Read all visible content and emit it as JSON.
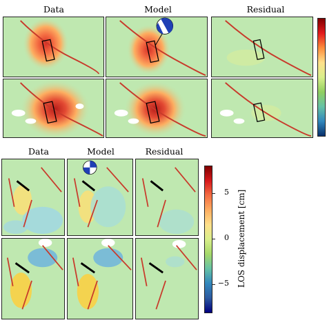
{
  "top_figure": {
    "titles": {
      "data": "Data",
      "model": "Model",
      "residual": "Residual"
    }
  },
  "bottom_figure": {
    "titles": {
      "data": "Data",
      "model": "Model",
      "residual": "Residual"
    },
    "colorbar": {
      "label": "LOS displacement [cm]",
      "ticks": [
        "5",
        "0",
        "−5"
      ],
      "range": [
        -8,
        8
      ],
      "colormap": "jet"
    }
  },
  "colors": {
    "fault": "#c83a2b",
    "background": "#bfe8b0",
    "uplift_core": "#d73027",
    "positive": "#f4c13c",
    "negative": "#4aa3df"
  }
}
